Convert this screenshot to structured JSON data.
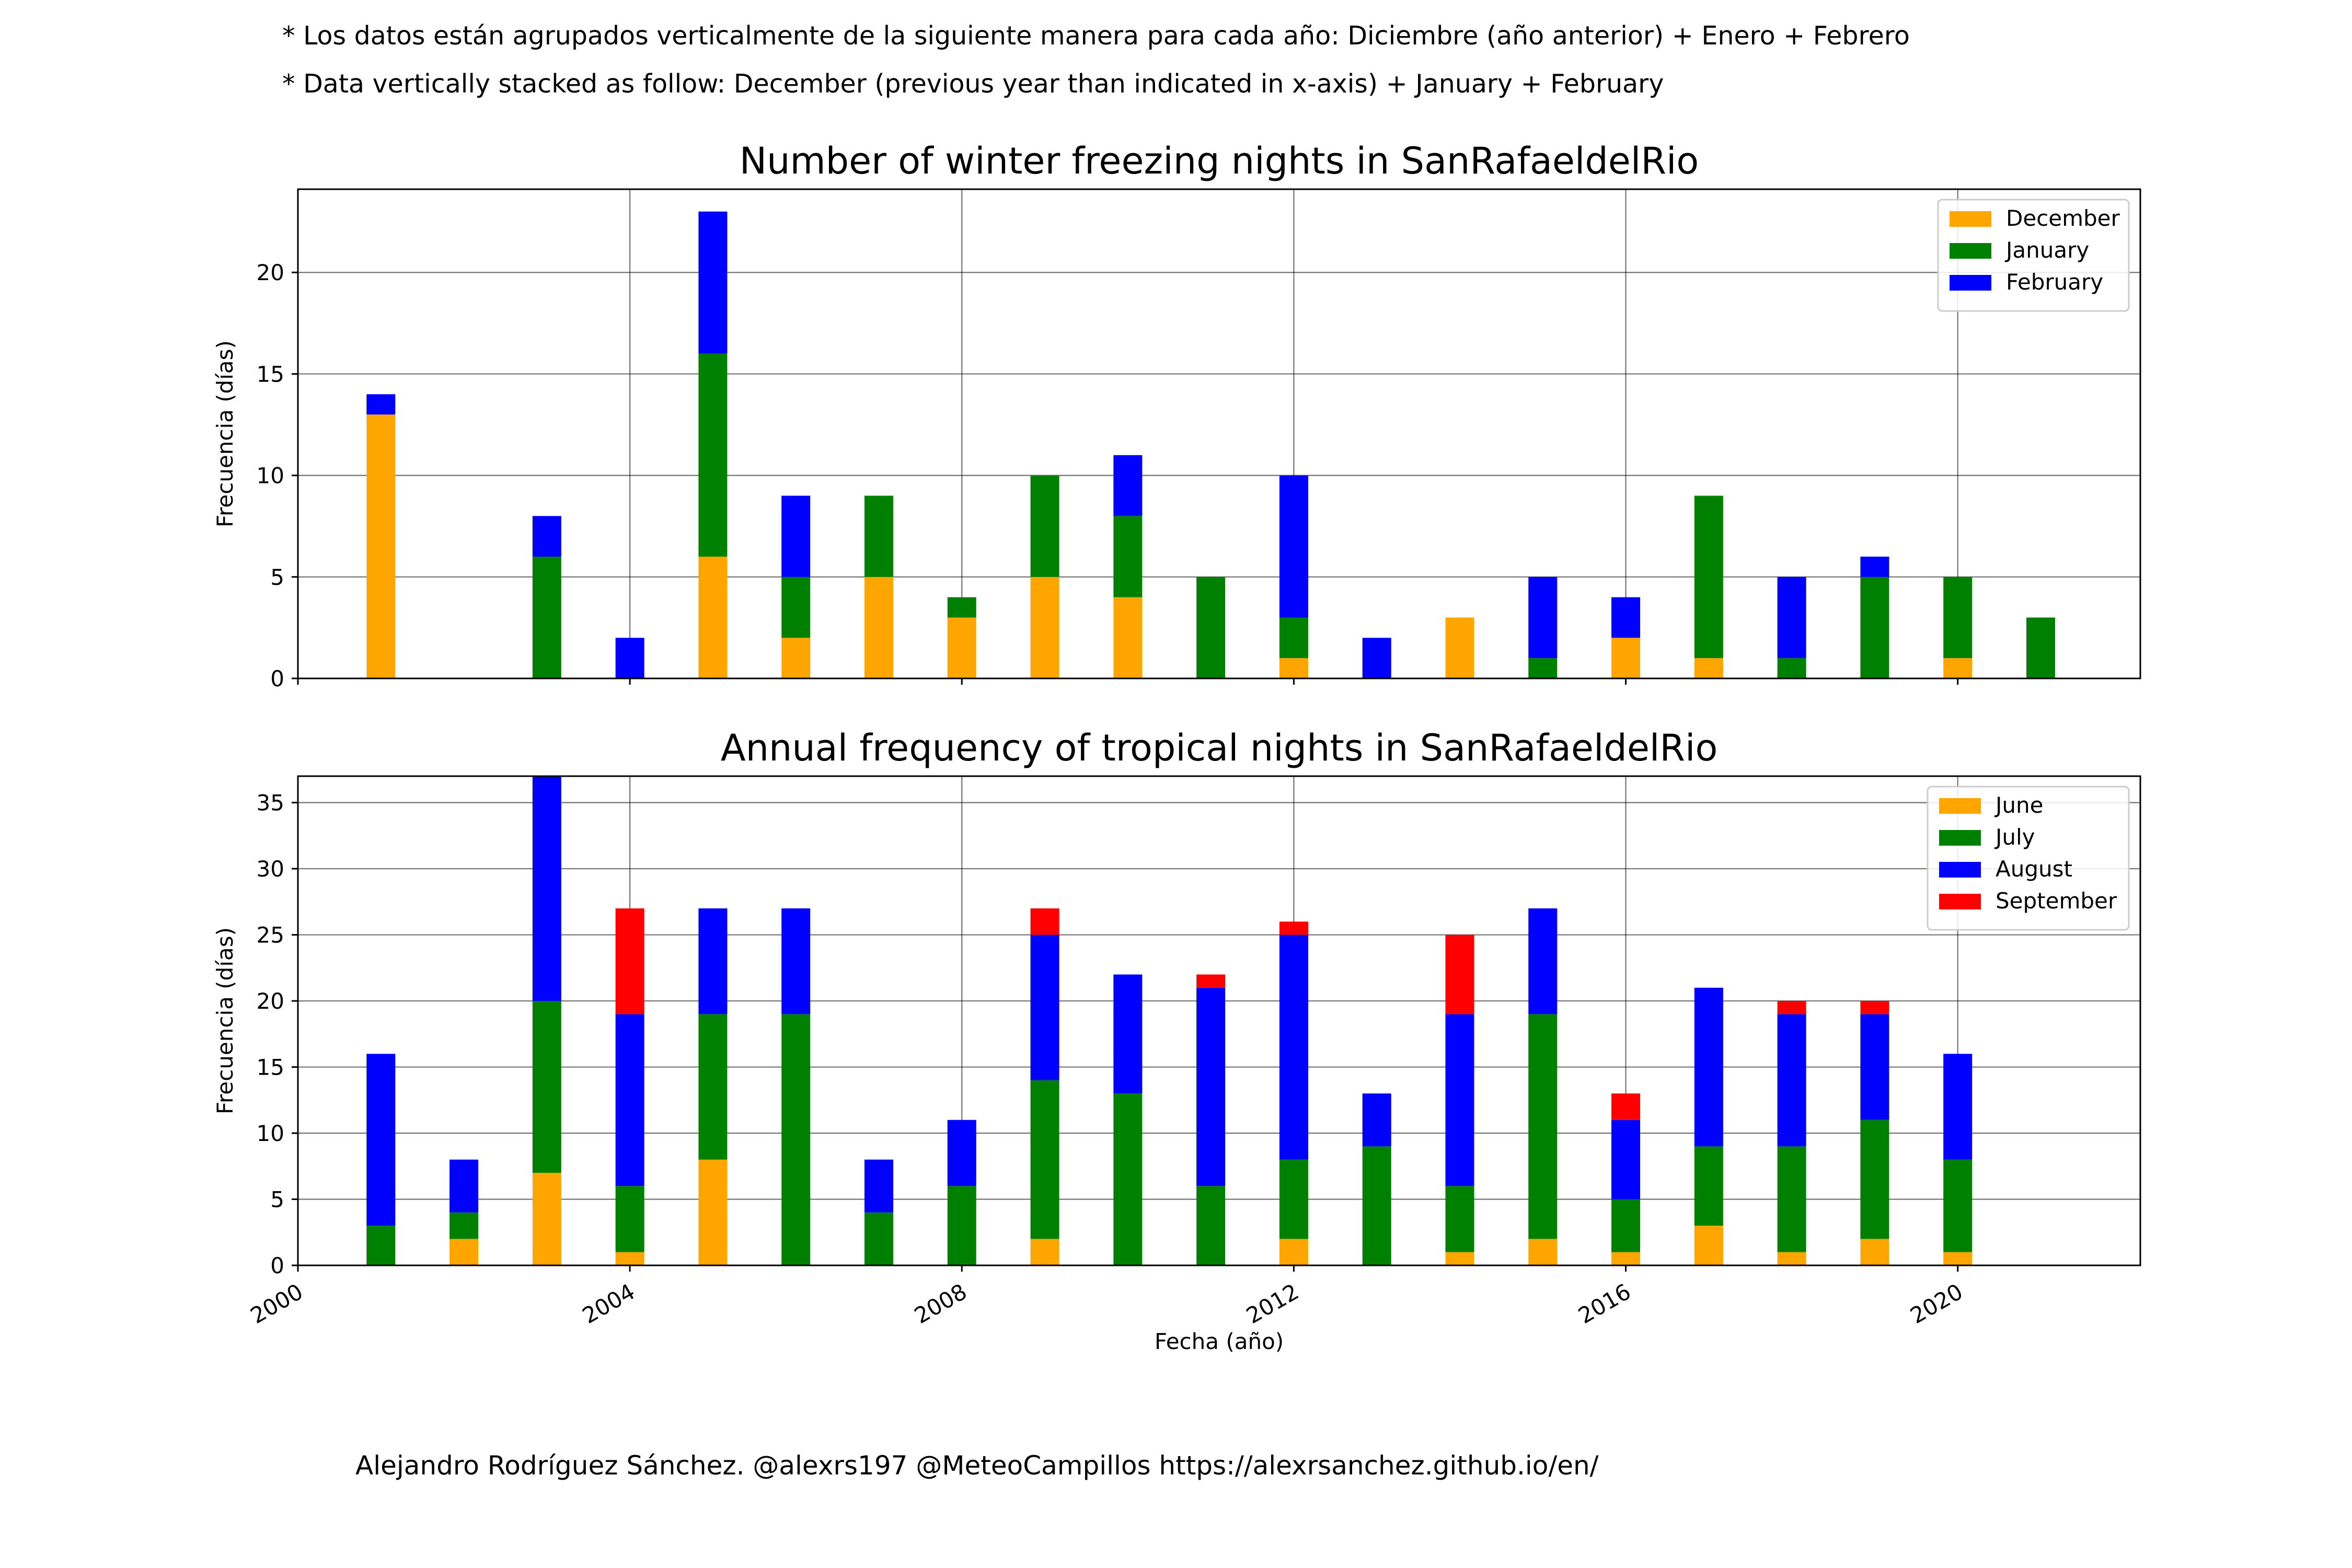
{
  "notes": {
    "spanish": "* Los datos están agrupados verticalmente de la siguiente manera para cada año: Diciembre (año anterior) + Enero  + Febrero",
    "english": "* Data vertically stacked as follow: December (previous year than indicated in x-axis) + January  + February"
  },
  "credit": "Alejandro Rodríguez Sánchez. @alexrs197 @MeteoCampillos   https://alexrsanchez.github.io/en/",
  "colors": {
    "orange": "#FFA500",
    "green": "#008000",
    "blue": "#0000FF",
    "red": "#FF0000"
  },
  "chart_data": [
    {
      "type": "bar",
      "stacked": true,
      "title": "Number of winter freezing nights in SanRafaeldelRio",
      "ylabel": "Frecuencia (días)",
      "xlabel": "",
      "xlim": [
        2000,
        2022.2
      ],
      "ylim": [
        0,
        24.1
      ],
      "yticks": [
        0,
        5,
        10,
        15,
        20
      ],
      "xticks": [
        2000,
        2004,
        2008,
        2012,
        2016,
        2020
      ],
      "show_xtick_labels": false,
      "grid": true,
      "legend_position": "top-right",
      "years": [
        2001,
        2002,
        2003,
        2004,
        2005,
        2006,
        2007,
        2008,
        2009,
        2010,
        2011,
        2012,
        2013,
        2014,
        2015,
        2016,
        2017,
        2018,
        2019,
        2020,
        2021
      ],
      "series": [
        {
          "name": "December",
          "color": "#FFA500",
          "values": [
            13,
            0,
            0,
            0,
            6,
            2,
            5,
            3,
            5,
            4,
            0,
            1,
            0,
            3,
            0,
            2,
            1,
            0,
            0,
            1,
            0
          ]
        },
        {
          "name": "January",
          "color": "#008000",
          "values": [
            0,
            0,
            6,
            0,
            10,
            3,
            4,
            1,
            5,
            4,
            5,
            2,
            0,
            0,
            1,
            0,
            8,
            1,
            5,
            4,
            3
          ]
        },
        {
          "name": "February",
          "color": "#0000FF",
          "values": [
            1,
            0,
            2,
            2,
            7,
            4,
            0,
            0,
            0,
            3,
            0,
            7,
            2,
            0,
            4,
            2,
            0,
            4,
            1,
            0,
            0
          ]
        }
      ]
    },
    {
      "type": "bar",
      "stacked": true,
      "title": "Annual frequency of tropical nights in SanRafaeldelRio",
      "ylabel": "Frecuencia (días)",
      "xlabel": "Fecha (año)",
      "xlim": [
        2000,
        2022.2
      ],
      "ylim": [
        0,
        37
      ],
      "yticks": [
        0,
        5,
        10,
        15,
        20,
        25,
        30,
        35
      ],
      "xticks": [
        2000,
        2004,
        2008,
        2012,
        2016,
        2020
      ],
      "show_xtick_labels": true,
      "grid": true,
      "legend_position": "top-right",
      "years": [
        2001,
        2002,
        2003,
        2004,
        2005,
        2006,
        2007,
        2008,
        2009,
        2010,
        2011,
        2012,
        2013,
        2014,
        2015,
        2016,
        2017,
        2018,
        2019,
        2020
      ],
      "series": [
        {
          "name": "June",
          "color": "#FFA500",
          "values": [
            0,
            2,
            7,
            1,
            8,
            0,
            0,
            0,
            2,
            0,
            0,
            2,
            0,
            1,
            2,
            1,
            3,
            1,
            2,
            1
          ]
        },
        {
          "name": "July",
          "color": "#008000",
          "values": [
            3,
            2,
            13,
            5,
            11,
            19,
            4,
            6,
            12,
            13,
            6,
            6,
            9,
            5,
            17,
            4,
            6,
            8,
            9,
            7
          ]
        },
        {
          "name": "August",
          "color": "#0000FF",
          "values": [
            13,
            4,
            17,
            13,
            8,
            8,
            4,
            5,
            11,
            9,
            15,
            17,
            4,
            13,
            8,
            6,
            12,
            10,
            8,
            8
          ]
        },
        {
          "name": "September",
          "color": "#FF0000",
          "values": [
            0,
            0,
            0,
            8,
            0,
            0,
            0,
            0,
            2,
            0,
            1,
            1,
            0,
            6,
            0,
            2,
            0,
            1,
            1,
            0
          ]
        }
      ]
    }
  ]
}
